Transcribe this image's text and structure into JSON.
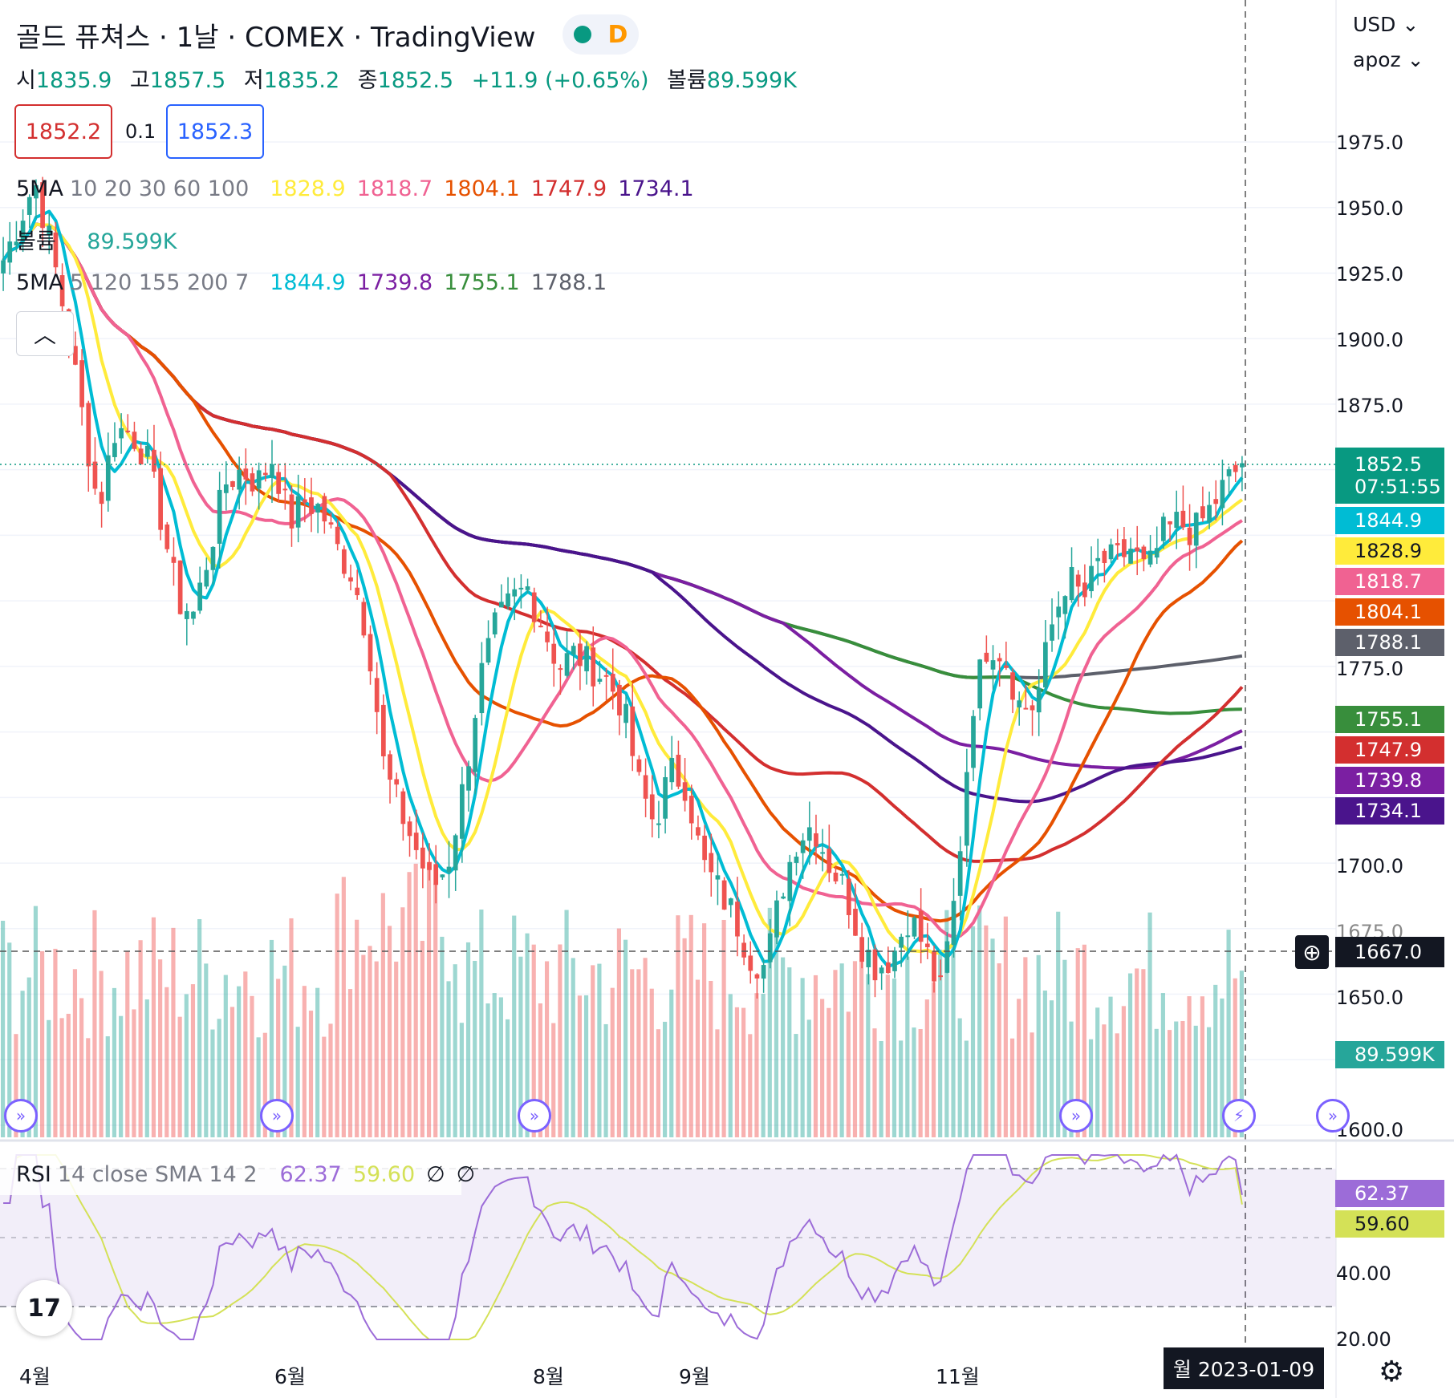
{
  "header": {
    "title": "골드 퓨쳐스 · 1날 · COMEX · TradingView",
    "interval_badge": "D",
    "ohlc": [
      {
        "label": "시",
        "value": "1835.9"
      },
      {
        "label": "고",
        "value": "1857.5"
      },
      {
        "label": "저",
        "value": "1835.2"
      },
      {
        "label": "종",
        "value": "1852.5"
      }
    ],
    "change": "+11.9 (+0.65%)",
    "volume_label": "볼륨",
    "volume_value": "89.599K"
  },
  "trade": {
    "sell_price": "1852.2",
    "spread": "0.1",
    "buy_price": "1852.3"
  },
  "legends": {
    "ma1": {
      "name": "5MA",
      "params": "10 20 30 60 100",
      "values": [
        {
          "v": "1828.9",
          "color": "#ffeb3b"
        },
        {
          "v": "1818.7",
          "color": "#f06292"
        },
        {
          "v": "1804.1",
          "color": "#e65100"
        },
        {
          "v": "1747.9",
          "color": "#d32f2f"
        },
        {
          "v": "1734.1",
          "color": "#4a148c"
        }
      ]
    },
    "vol": {
      "name": "볼륨",
      "value": "89.599K"
    },
    "ma2": {
      "name": "5MA",
      "params": "5 120 155 200 7",
      "values": [
        {
          "v": "1844.9",
          "color": "#00bcd4"
        },
        {
          "v": "1739.8",
          "color": "#7b1fa2"
        },
        {
          "v": "1755.1",
          "color": "#388e3c"
        },
        {
          "v": "1788.1",
          "color": "#5d606b"
        }
      ]
    },
    "rsi": {
      "name": "RSI",
      "params": "14 close SMA 14 2",
      "rsi_value": "62.37",
      "sma_value": "59.60",
      "sym1": "∅",
      "sym2": "∅"
    }
  },
  "top_right": {
    "currency": "USD",
    "user": "apoz"
  },
  "price_axis": {
    "ticks": [
      "1975.0",
      "1950.0",
      "1925.0",
      "1900.0",
      "1875.0",
      "1775.0",
      "1700.0",
      "1675.0",
      "1650.0",
      "1600.0"
    ],
    "labels": [
      {
        "text": "1852.5",
        "sub": "07:51:55",
        "color": "#089981"
      },
      {
        "text": "1844.9",
        "color": "#00bcd4"
      },
      {
        "text": "1828.9",
        "color": "#ffeb3b"
      },
      {
        "text": "1818.7",
        "color": "#f06292"
      },
      {
        "text": "1804.1",
        "color": "#e65100"
      },
      {
        "text": "1788.1",
        "color": "#5d606b"
      },
      {
        "text": "1755.1",
        "color": "#388e3c"
      },
      {
        "text": "1747.9",
        "color": "#d32f2f"
      },
      {
        "text": "1739.8",
        "color": "#7b1fa2"
      },
      {
        "text": "1734.1",
        "color": "#4a148c"
      },
      {
        "text": "89.599K",
        "color": "#26a69a"
      }
    ],
    "crosshair_price": "1667.0"
  },
  "rsi_axis": {
    "ticks": [
      "40.00",
      "20.00"
    ],
    "rsi_label": "62.37",
    "sma_label": "59.60"
  },
  "time_axis": {
    "labels": [
      "4월",
      "6월",
      "8월",
      "9월",
      "11월"
    ],
    "crosshair_date": "월 2023-01-09"
  },
  "chart_data": {
    "type": "candlestick",
    "symbol": "골드 퓨쳐스",
    "exchange": "COMEX",
    "last_bar": {
      "open": 1835.9,
      "high": 1857.5,
      "low": 1835.2,
      "close": 1852.5,
      "volume": "89.599K"
    },
    "price_range": [
      1600,
      2000
    ],
    "moving_averages": [
      {
        "name": "MA10",
        "value": 1828.9
      },
      {
        "name": "MA20",
        "value": 1818.7
      },
      {
        "name": "MA30",
        "value": 1804.1
      },
      {
        "name": "MA60",
        "value": 1747.9
      },
      {
        "name": "MA100",
        "value": 1734.1
      },
      {
        "name": "MA5",
        "value": 1844.9
      },
      {
        "name": "MA120",
        "value": 1739.8
      },
      {
        "name": "MA155",
        "value": 1755.1
      },
      {
        "name": "MA200",
        "value": 1788.1
      }
    ],
    "close_path": [
      1930,
      1945,
      1960,
      1935,
      1905,
      1870,
      1835,
      1865,
      1865,
      1855,
      1830,
      1800,
      1795,
      1820,
      1845,
      1850,
      1845,
      1855,
      1830,
      1838,
      1835,
      1820,
      1810,
      1785,
      1735,
      1720,
      1705,
      1690,
      1700,
      1730,
      1770,
      1790,
      1800,
      1805,
      1790,
      1775,
      1780,
      1775,
      1770,
      1760,
      1730,
      1715,
      1735,
      1730,
      1700,
      1690,
      1680,
      1665,
      1660,
      1690,
      1710,
      1715,
      1700,
      1690,
      1670,
      1660,
      1665,
      1680,
      1668,
      1650,
      1690,
      1760,
      1785,
      1780,
      1760,
      1760,
      1790,
      1810,
      1800,
      1815,
      1815,
      1820,
      1810,
      1825,
      1830,
      1826,
      1835,
      1845,
      1852
    ],
    "rsi": {
      "last": 62.37,
      "sma_last": 59.6,
      "range": [
        20,
        80
      ]
    }
  }
}
